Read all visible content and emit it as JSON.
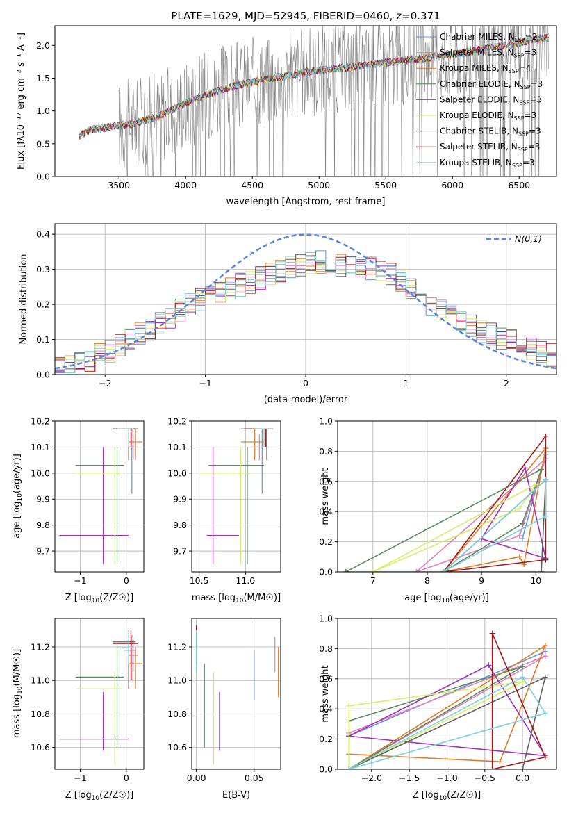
{
  "figure_title": "PLATE=1629, MJD=52945, FIBERID=0460, z=0.371",
  "colors": {
    "chabrier_miles": "#6a8fd8",
    "salpeter_miles": "#e17fb8",
    "kroupa_miles": "#e07b2a",
    "chabrier_elodie": "#5a8a5f",
    "salpeter_elodie": "#a030b8",
    "kroupa_elodie": "#d6ee6a",
    "chabrier_stelib": "#606060",
    "salpeter_stelib": "#a01818",
    "kroupa_stelib": "#7fd0d8",
    "data_gray": "#808080"
  },
  "chart_data": [
    {
      "id": "spectrum",
      "type": "line",
      "xlabel": "wavelength [Angstrom, rest frame]",
      "ylabel": "Flux [f_λ 10^-17 erg cm^-2 s^-1 A^-1]",
      "xlim": [
        3020,
        6780
      ],
      "ylim": [
        0,
        2.3
      ],
      "xticks": [
        3500,
        4000,
        4500,
        5000,
        5500,
        6000,
        6500
      ],
      "yticks": [
        0.0,
        0.5,
        1.0,
        1.5,
        2.0
      ],
      "grid": false,
      "legend_position": "top-right",
      "continuum": {
        "x": [
          3200,
          3300,
          3400,
          3500,
          3600,
          3700,
          3800,
          3900,
          4000,
          4200,
          4400,
          4600,
          4800,
          5000,
          5200,
          5400,
          5600,
          5800,
          6000,
          6200,
          6400,
          6600,
          6720
        ],
        "y": [
          0.62,
          0.72,
          0.74,
          0.78,
          0.8,
          0.86,
          0.92,
          1.02,
          1.12,
          1.28,
          1.4,
          1.48,
          1.55,
          1.62,
          1.66,
          1.71,
          1.76,
          1.8,
          1.86,
          1.93,
          2.0,
          2.08,
          2.12
        ]
      },
      "series": [
        {
          "name": "Chabrier MILES",
          "nssp": "2"
        },
        {
          "name": "Salpeter MILES",
          "nssp": "3"
        },
        {
          "name": "Kroupa MILES",
          "nssp": "4"
        },
        {
          "name": "Chabrier ELODIE",
          "nssp": "3"
        },
        {
          "name": "Salpeter ELODIE",
          "nssp": "3"
        },
        {
          "name": "Kroupa ELODIE",
          "nssp": "3"
        },
        {
          "name": "Chabrier STELIB",
          "nssp": "3"
        },
        {
          "name": "Salpeter STELIB",
          "nssp": "3"
        },
        {
          "name": "Kroupa STELIB",
          "nssp": "3"
        }
      ]
    },
    {
      "id": "residuals",
      "type": "line",
      "xlabel": "(data-model)/error",
      "ylabel": "Normed distribution",
      "xlim": [
        -2.5,
        2.5
      ],
      "ylim": [
        0,
        0.43
      ],
      "xticks": [
        -2,
        -1,
        0,
        1,
        2
      ],
      "yticks": [
        0.0,
        0.1,
        0.2,
        0.3,
        0.4
      ],
      "grid": true,
      "legend_label": "N(0,1)",
      "legend_position": "top-right",
      "normal_curve": {
        "mean": 0,
        "sigma": 1
      },
      "histogram_envelope": {
        "x": [
          -2.5,
          -2.2,
          -2.0,
          -1.8,
          -1.5,
          -1.2,
          -1.0,
          -0.8,
          -0.5,
          -0.2,
          0.0,
          0.2,
          0.5,
          0.8,
          1.0,
          1.2,
          1.5,
          1.8,
          2.0,
          2.2,
          2.5
        ],
        "y": [
          0.02,
          0.035,
          0.06,
          0.09,
          0.14,
          0.19,
          0.22,
          0.24,
          0.27,
          0.3,
          0.32,
          0.32,
          0.31,
          0.29,
          0.26,
          0.21,
          0.16,
          0.12,
          0.1,
          0.08,
          0.05
        ]
      }
    },
    {
      "id": "age_vs_Z",
      "type": "scatter",
      "xlabel": "Z [log10(Z/Z☉)]",
      "ylabel": "age [log10(age/yr)]",
      "xlim": [
        -1.55,
        0.38
      ],
      "ylim": [
        9.62,
        10.2
      ],
      "xticks": [
        -1,
        0
      ],
      "yticks": [
        9.7,
        9.8,
        9.9,
        10.0,
        10.1,
        10.2
      ],
      "grid": true
    },
    {
      "id": "age_vs_mass",
      "type": "scatter",
      "xlabel": "mass [log10(M/M☉)]",
      "ylim": [
        9.62,
        10.2
      ],
      "xlim": [
        10.42,
        11.38
      ],
      "xticks": [
        10.5,
        11.0
      ],
      "yticks": [
        9.7,
        9.8,
        9.9,
        10.0,
        10.1,
        10.2
      ],
      "grid": true
    },
    {
      "id": "massweight_vs_age",
      "type": "line",
      "xlabel": "age [log10(age/yr)]",
      "ylabel": "mass weight",
      "xlim": [
        6.35,
        10.38
      ],
      "ylim": [
        0,
        1.0
      ],
      "xticks": [
        7,
        8,
        9,
        10
      ],
      "yticks": [
        0.0,
        0.2,
        0.4,
        0.6,
        0.8,
        1.0
      ],
      "grid": true
    },
    {
      "id": "mass_vs_Z",
      "type": "scatter",
      "xlabel": "Z [log10(Z/Z☉)]",
      "ylabel": "mass [log10(M/M☉)]",
      "xlim": [
        -1.55,
        0.38
      ],
      "ylim": [
        10.47,
        11.37
      ],
      "xticks": [
        -1,
        0
      ],
      "yticks": [
        10.6,
        10.8,
        11.0,
        11.2
      ],
      "grid": true
    },
    {
      "id": "mass_vs_ebv",
      "type": "scatter",
      "xlabel": "E(B-V)",
      "xlim": [
        -0.004,
        0.073
      ],
      "ylim": [
        10.47,
        11.37
      ],
      "xticks": [
        0.0,
        0.05
      ],
      "yticks": [
        10.6,
        10.8,
        11.0,
        11.2
      ],
      "grid": true
    },
    {
      "id": "massweight_vs_Z",
      "type": "line",
      "xlabel": "Z [log10(Z/Z☉)]",
      "ylabel": "mass weight",
      "xlim": [
        -2.45,
        0.45
      ],
      "ylim": [
        0,
        1.0
      ],
      "xticks": [
        -2.0,
        -1.5,
        -1.0,
        -0.5,
        0.0
      ],
      "yticks": [
        0.0,
        0.2,
        0.4,
        0.6,
        0.8,
        1.0
      ],
      "grid": true
    }
  ],
  "fits": [
    {
      "key": "chabrier_miles",
      "Z": 0.12,
      "Zlo": -0.05,
      "Zhi": 0.22,
      "age": 10.17,
      "alo": 9.92,
      "ahi": 10.17,
      "mass": 11.18,
      "mlo": 11.0,
      "mhi": 11.27,
      "ebv": 0.05,
      "elo": 10.88,
      "ehi": 11.18,
      "comps": [
        {
          "age": 9.75,
          "Z": -2.3,
          "w": 0.22
        },
        {
          "age": 10.18,
          "Z": 0.3,
          "w": 0.78
        }
      ]
    },
    {
      "key": "salpeter_miles",
      "Z": 0.15,
      "Zlo": 0.05,
      "Zhi": 0.25,
      "age": 10.1,
      "alo": 10.05,
      "ahi": 10.15,
      "mass": 11.15,
      "mlo": 11.05,
      "mhi": 11.25,
      "ebv": 0.068,
      "elo": 11.05,
      "ehi": 11.26,
      "comps": [
        {
          "age": 7.8,
          "Z": -2.3,
          "w": 0.0
        },
        {
          "age": 9.7,
          "Z": -2.3,
          "w": 0.24
        },
        {
          "age": 10.18,
          "Z": 0.3,
          "w": 0.75
        }
      ]
    },
    {
      "key": "kroupa_miles",
      "Z": 0.2,
      "Zlo": 0.05,
      "Zhi": 0.35,
      "age": 10.12,
      "alo": 10.05,
      "ahi": 10.17,
      "mass": 11.1,
      "mlo": 10.95,
      "mhi": 11.2,
      "ebv": 0.071,
      "elo": 10.9,
      "ehi": 11.2,
      "comps": [
        {
          "age": 8.3,
          "Z": -2.3,
          "w": 0.0
        },
        {
          "age": 9.7,
          "Z": -2.3,
          "w": 0.1
        },
        {
          "age": 9.78,
          "Z": -0.3,
          "w": 0.05
        },
        {
          "age": 10.18,
          "Z": 0.3,
          "w": 0.82
        }
      ]
    },
    {
      "key": "chabrier_elodie",
      "Z": -0.2,
      "Zlo": -1.1,
      "Zhi": -0.05,
      "age": 10.03,
      "alo": 9.65,
      "ahi": 10.1,
      "mass": 11.02,
      "mlo": 10.6,
      "mhi": 11.2,
      "ebv": 0.007,
      "elo": 10.6,
      "ehi": 11.1,
      "comps": [
        {
          "age": 6.5,
          "Z": -2.3,
          "w": 0.0
        },
        {
          "age": 8.3,
          "Z": -2.3,
          "w": 0.0
        },
        {
          "age": 9.75,
          "Z": -2.3,
          "w": 0.32
        },
        {
          "age": 10.1,
          "Z": 0.0,
          "w": 0.68
        }
      ]
    },
    {
      "key": "salpeter_elodie",
      "Z": -0.5,
      "Zlo": -1.45,
      "Zhi": 0.05,
      "age": 9.76,
      "alo": 9.65,
      "ahi": 10.1,
      "mass": 10.65,
      "mlo": 10.58,
      "mhi": 10.93,
      "ebv": 0.02,
      "elo": 10.58,
      "ehi": 10.93,
      "comps": [
        {
          "age": 9.0,
          "Z": -2.3,
          "w": 0.22
        },
        {
          "age": 9.8,
          "Z": -0.45,
          "w": 0.69
        },
        {
          "age": 10.18,
          "Z": 0.3,
          "w": 0.09
        }
      ]
    },
    {
      "key": "kroupa_elodie",
      "Z": -0.25,
      "Zlo": -1.1,
      "Zhi": -0.1,
      "age": 10.0,
      "alo": 9.65,
      "ahi": 10.1,
      "mass": 10.95,
      "mlo": 10.5,
      "mhi": 11.05,
      "ebv": 0.015,
      "elo": 10.5,
      "ehi": 11.05,
      "comps": [
        {
          "age": 7.0,
          "Z": -2.3,
          "w": 0.0
        },
        {
          "age": 9.7,
          "Z": -2.3,
          "w": 0.42
        },
        {
          "age": 10.0,
          "Z": 0.0,
          "w": 0.58
        }
      ]
    },
    {
      "key": "chabrier_stelib",
      "Z": 0.05,
      "Zlo": -0.3,
      "Zhi": 0.2,
      "age": 10.17,
      "alo": 10.05,
      "ahi": 10.17,
      "mass": 11.23,
      "mlo": 10.95,
      "mhi": 11.28,
      "ebv": 0.0,
      "elo": 11.1,
      "ehi": 11.3,
      "comps": [
        {
          "age": 8.3,
          "Z": -2.3,
          "w": 0.0
        },
        {
          "age": 10.1,
          "Z": 0.0,
          "w": 0.0
        },
        {
          "age": 10.18,
          "Z": 0.3,
          "w": 0.61
        }
      ]
    },
    {
      "key": "salpeter_stelib",
      "Z": 0.1,
      "Zlo": -0.3,
      "Zhi": 0.25,
      "age": 10.17,
      "alo": 10.1,
      "ahi": 10.17,
      "mass": 11.22,
      "mlo": 11.0,
      "mhi": 11.3,
      "ebv": 0.0,
      "elo": 11.2,
      "ehi": 11.33,
      "comps": [
        {
          "age": 8.3,
          "Z": -0.4,
          "w": 0.0
        },
        {
          "age": 10.18,
          "Z": -0.4,
          "w": 0.9
        },
        {
          "age": 10.18,
          "Z": 0.3,
          "w": 0.08
        }
      ]
    },
    {
      "key": "kroupa_stelib",
      "Z": 0.05,
      "Zlo": -0.2,
      "Zhi": 0.15,
      "age": 10.17,
      "alo": 10.1,
      "ahi": 10.17,
      "mass": 11.2,
      "mlo": 11.1,
      "mhi": 11.3,
      "ebv": 0.0,
      "elo": 11.05,
      "ehi": 11.3,
      "comps": [
        {
          "age": 8.3,
          "Z": -2.3,
          "w": 0.0
        },
        {
          "age": 10.18,
          "Z": 0.3,
          "w": 0.37
        },
        {
          "age": 10.18,
          "Z": 0.0,
          "w": 0.61
        }
      ]
    }
  ]
}
